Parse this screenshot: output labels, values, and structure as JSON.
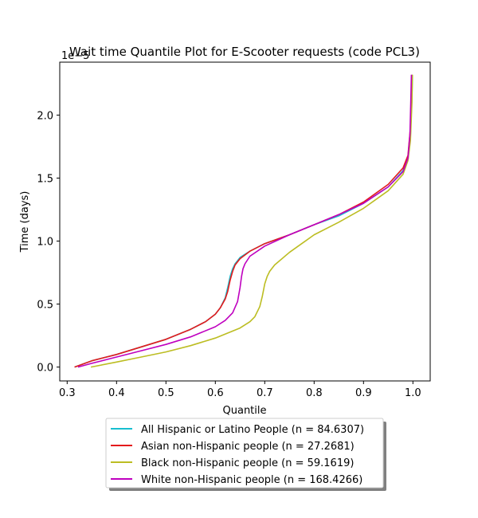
{
  "chart_data": {
    "type": "line",
    "title": "Wait time Quantile Plot for E-Scooter  requests (code PCL3)",
    "xlabel": "Quantile",
    "ylabel": "Time (days)",
    "y_offset_label": "1e−5",
    "xlim": [
      0.285,
      1.035
    ],
    "ylim": [
      -0.11,
      2.42
    ],
    "x_ticks": [
      0.3,
      0.4,
      0.5,
      0.6,
      0.7,
      0.8,
      0.9,
      1.0
    ],
    "x_tick_labels": [
      "0.3",
      "0.4",
      "0.5",
      "0.6",
      "0.7",
      "0.8",
      "0.9",
      "1.0"
    ],
    "y_ticks": [
      0.0,
      0.5,
      1.0,
      1.5,
      2.0
    ],
    "y_tick_labels": [
      "0.0",
      "0.5",
      "1.0",
      "1.5",
      "2.0"
    ],
    "grid": false,
    "legend_position": "below plot, centered",
    "series": [
      {
        "name": "All Hispanic or Latino People (n = 84.6307)",
        "color": "#17becf",
        "x": [
          0.315,
          0.35,
          0.4,
          0.45,
          0.5,
          0.55,
          0.58,
          0.6,
          0.61,
          0.62,
          0.625,
          0.63,
          0.635,
          0.64,
          0.65,
          0.67,
          0.7,
          0.75,
          0.8,
          0.85,
          0.9,
          0.95,
          0.98,
          0.99,
          0.995,
          0.998,
          0.999
        ],
        "y": [
          0.0,
          0.05,
          0.1,
          0.16,
          0.22,
          0.3,
          0.36,
          0.42,
          0.47,
          0.55,
          0.63,
          0.72,
          0.78,
          0.82,
          0.87,
          0.92,
          0.98,
          1.05,
          1.13,
          1.2,
          1.3,
          1.43,
          1.56,
          1.66,
          1.85,
          2.15,
          2.32
        ]
      },
      {
        "name": "Asian non-Hispanic people (n = 27.2681)",
        "color": "#e41a1c",
        "x": [
          0.315,
          0.35,
          0.4,
          0.45,
          0.5,
          0.55,
          0.58,
          0.6,
          0.61,
          0.62,
          0.625,
          0.63,
          0.635,
          0.64,
          0.65,
          0.67,
          0.7,
          0.75,
          0.8,
          0.85,
          0.9,
          0.95,
          0.98,
          0.99,
          0.995,
          0.997,
          0.998
        ],
        "y": [
          0.0,
          0.05,
          0.1,
          0.16,
          0.22,
          0.3,
          0.36,
          0.42,
          0.47,
          0.54,
          0.6,
          0.69,
          0.76,
          0.81,
          0.86,
          0.92,
          0.98,
          1.05,
          1.13,
          1.21,
          1.31,
          1.45,
          1.58,
          1.68,
          1.9,
          2.2,
          2.32
        ]
      },
      {
        "name": "Black non-Hispanic people (n = 59.1619)",
        "color": "#bcbd22",
        "x": [
          0.348,
          0.4,
          0.45,
          0.5,
          0.55,
          0.6,
          0.65,
          0.67,
          0.68,
          0.69,
          0.695,
          0.7,
          0.705,
          0.71,
          0.72,
          0.75,
          0.8,
          0.85,
          0.9,
          0.95,
          0.98,
          0.99,
          0.995,
          0.998,
          0.999
        ],
        "y": [
          0.0,
          0.04,
          0.08,
          0.12,
          0.17,
          0.23,
          0.31,
          0.36,
          0.4,
          0.48,
          0.56,
          0.66,
          0.72,
          0.76,
          0.81,
          0.91,
          1.05,
          1.15,
          1.26,
          1.4,
          1.53,
          1.64,
          1.8,
          2.1,
          2.32
        ]
      },
      {
        "name": "White non-Hispanic people (n = 168.4266)",
        "color": "#bf00bf",
        "x": [
          0.322,
          0.35,
          0.4,
          0.45,
          0.5,
          0.55,
          0.6,
          0.62,
          0.635,
          0.645,
          0.65,
          0.653,
          0.656,
          0.66,
          0.67,
          0.7,
          0.75,
          0.8,
          0.85,
          0.9,
          0.95,
          0.98,
          0.99,
          0.994,
          0.996,
          0.997
        ],
        "y": [
          0.0,
          0.03,
          0.08,
          0.13,
          0.18,
          0.24,
          0.32,
          0.37,
          0.43,
          0.52,
          0.63,
          0.72,
          0.78,
          0.82,
          0.88,
          0.96,
          1.05,
          1.13,
          1.21,
          1.3,
          1.43,
          1.55,
          1.66,
          1.85,
          2.15,
          2.32
        ]
      }
    ]
  }
}
